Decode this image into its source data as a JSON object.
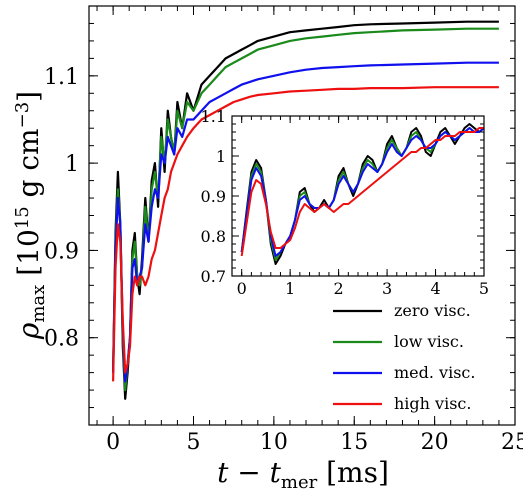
{
  "chart_data": [
    {
      "type": "line",
      "xlabel": "t − t_mer [ms]",
      "ylabel": "ρ_max [10^15 g cm^−3]",
      "xlim": [
        -1.5,
        25
      ],
      "ylim": [
        0.7,
        1.18
      ],
      "xticks": [
        0,
        5,
        10,
        15,
        20,
        25
      ],
      "yticks": [
        0.8,
        0.9,
        1.0,
        1.1
      ],
      "grid": false,
      "legend_position": "bottom-right",
      "series": [
        {
          "name": "zero visc.",
          "color": "#000000",
          "x": [
            0,
            0.15,
            0.3,
            0.45,
            0.6,
            0.75,
            0.9,
            1.05,
            1.2,
            1.35,
            1.5,
            1.65,
            1.8,
            2.0,
            2.2,
            2.4,
            2.6,
            2.8,
            3.0,
            3.2,
            3.4,
            3.6,
            3.8,
            4.0,
            4.3,
            4.6,
            5.0,
            5.5,
            6.0,
            6.5,
            7.0,
            7.5,
            8.0,
            8.5,
            9.0,
            10,
            11,
            12,
            13,
            14,
            15,
            16,
            18,
            20,
            22,
            24
          ],
          "y": [
            0.76,
            0.92,
            0.99,
            0.93,
            0.79,
            0.73,
            0.76,
            0.8,
            0.9,
            0.92,
            0.87,
            0.85,
            0.89,
            0.96,
            0.91,
            0.98,
            1.0,
            0.95,
            1.04,
            0.99,
            1.06,
            1.03,
            1.01,
            1.07,
            1.04,
            1.08,
            1.06,
            1.09,
            1.1,
            1.11,
            1.12,
            1.125,
            1.13,
            1.135,
            1.14,
            1.145,
            1.15,
            1.152,
            1.154,
            1.156,
            1.158,
            1.159,
            1.16,
            1.161,
            1.162,
            1.162
          ]
        },
        {
          "name": "low visc.",
          "color": "#1a8a1a",
          "x": [
            0,
            0.15,
            0.3,
            0.45,
            0.6,
            0.75,
            0.9,
            1.05,
            1.2,
            1.35,
            1.5,
            1.65,
            1.8,
            2.0,
            2.2,
            2.4,
            2.6,
            2.8,
            3.0,
            3.2,
            3.4,
            3.6,
            3.8,
            4.0,
            4.3,
            4.6,
            5.0,
            5.5,
            6.0,
            6.5,
            7.0,
            7.5,
            8.0,
            8.5,
            9.0,
            10,
            11,
            12,
            13,
            14,
            15,
            16,
            18,
            20,
            22,
            24
          ],
          "y": [
            0.76,
            0.91,
            0.97,
            0.93,
            0.8,
            0.74,
            0.77,
            0.8,
            0.89,
            0.91,
            0.87,
            0.86,
            0.88,
            0.95,
            0.91,
            0.97,
            0.99,
            0.96,
            1.03,
            1.0,
            1.05,
            1.03,
            1.01,
            1.06,
            1.04,
            1.07,
            1.06,
            1.08,
            1.09,
            1.1,
            1.11,
            1.115,
            1.12,
            1.125,
            1.13,
            1.135,
            1.14,
            1.143,
            1.145,
            1.147,
            1.149,
            1.15,
            1.152,
            1.153,
            1.154,
            1.154
          ]
        },
        {
          "name": "med. visc.",
          "color": "#1010ee",
          "x": [
            0,
            0.15,
            0.3,
            0.45,
            0.6,
            0.75,
            0.9,
            1.05,
            1.2,
            1.35,
            1.5,
            1.65,
            1.8,
            2.0,
            2.2,
            2.4,
            2.6,
            2.8,
            3.0,
            3.2,
            3.4,
            3.6,
            3.8,
            4.0,
            4.3,
            4.6,
            5.0,
            5.5,
            6.0,
            6.5,
            7.0,
            7.5,
            8.0,
            8.5,
            9.0,
            10,
            11,
            12,
            13,
            14,
            15,
            16,
            18,
            20,
            22,
            24
          ],
          "y": [
            0.76,
            0.9,
            0.96,
            0.93,
            0.81,
            0.75,
            0.77,
            0.8,
            0.88,
            0.89,
            0.86,
            0.87,
            0.88,
            0.93,
            0.91,
            0.95,
            0.97,
            0.96,
            1.01,
            1.0,
            1.03,
            1.02,
            1.01,
            1.04,
            1.03,
            1.05,
            1.05,
            1.06,
            1.07,
            1.075,
            1.08,
            1.085,
            1.09,
            1.093,
            1.096,
            1.1,
            1.104,
            1.107,
            1.109,
            1.11,
            1.111,
            1.112,
            1.113,
            1.114,
            1.115,
            1.115
          ]
        },
        {
          "name": "high visc.",
          "color": "#ee1010",
          "x": [
            0,
            0.15,
            0.3,
            0.45,
            0.6,
            0.75,
            0.9,
            1.05,
            1.2,
            1.35,
            1.5,
            1.65,
            1.8,
            2.0,
            2.2,
            2.4,
            2.6,
            2.8,
            3.0,
            3.2,
            3.4,
            3.6,
            3.8,
            4.0,
            4.3,
            4.6,
            5.0,
            5.5,
            6.0,
            6.5,
            7.0,
            7.5,
            8.0,
            8.5,
            9.0,
            10,
            11,
            12,
            13,
            14,
            15,
            16,
            18,
            20,
            22,
            24
          ],
          "y": [
            0.75,
            0.88,
            0.93,
            0.91,
            0.82,
            0.76,
            0.77,
            0.79,
            0.85,
            0.87,
            0.86,
            0.87,
            0.87,
            0.86,
            0.87,
            0.89,
            0.9,
            0.92,
            0.94,
            0.96,
            0.97,
            0.99,
            1.0,
            1.01,
            1.02,
            1.03,
            1.04,
            1.05,
            1.055,
            1.06,
            1.065,
            1.07,
            1.073,
            1.076,
            1.078,
            1.08,
            1.082,
            1.083,
            1.084,
            1.085,
            1.085,
            1.086,
            1.086,
            1.087,
            1.087,
            1.087
          ]
        }
      ]
    },
    {
      "type": "line",
      "inset": true,
      "xlim": [
        -0.2,
        5
      ],
      "ylim": [
        0.7,
        1.1
      ],
      "xticks": [
        0,
        1,
        2,
        3,
        4,
        5
      ],
      "yticks": [
        0.7,
        0.8,
        0.9,
        1.0,
        1.1
      ],
      "grid": false,
      "series": [
        {
          "name": "zero visc.",
          "color": "#000000",
          "x": [
            0,
            0.1,
            0.2,
            0.3,
            0.4,
            0.5,
            0.6,
            0.7,
            0.8,
            0.9,
            1.0,
            1.1,
            1.2,
            1.3,
            1.4,
            1.5,
            1.6,
            1.7,
            1.8,
            1.9,
            2.0,
            2.1,
            2.2,
            2.3,
            2.4,
            2.5,
            2.6,
            2.7,
            2.8,
            2.9,
            3.0,
            3.1,
            3.2,
            3.3,
            3.4,
            3.5,
            3.6,
            3.7,
            3.8,
            3.9,
            4.0,
            4.1,
            4.2,
            4.3,
            4.4,
            4.5,
            4.6,
            4.7,
            4.8,
            4.9,
            5.0
          ],
          "y": [
            0.76,
            0.86,
            0.96,
            0.99,
            0.97,
            0.89,
            0.78,
            0.73,
            0.75,
            0.78,
            0.8,
            0.84,
            0.91,
            0.92,
            0.88,
            0.86,
            0.87,
            0.89,
            0.87,
            0.89,
            0.95,
            0.97,
            0.93,
            0.9,
            0.93,
            0.98,
            1.0,
            0.99,
            0.96,
            0.98,
            1.03,
            1.05,
            1.02,
            1.0,
            1.02,
            1.06,
            1.07,
            1.05,
            1.01,
            1.0,
            1.03,
            1.06,
            1.07,
            1.05,
            1.03,
            1.05,
            1.07,
            1.08,
            1.07,
            1.06,
            1.07
          ]
        },
        {
          "name": "low visc.",
          "color": "#1a8a1a",
          "x": [
            0,
            0.1,
            0.2,
            0.3,
            0.4,
            0.5,
            0.6,
            0.7,
            0.8,
            0.9,
            1.0,
            1.1,
            1.2,
            1.3,
            1.4,
            1.5,
            1.6,
            1.7,
            1.8,
            1.9,
            2.0,
            2.1,
            2.2,
            2.3,
            2.4,
            2.5,
            2.6,
            2.7,
            2.8,
            2.9,
            3.0,
            3.1,
            3.2,
            3.3,
            3.4,
            3.5,
            3.6,
            3.7,
            3.8,
            3.9,
            4.0,
            4.1,
            4.2,
            4.3,
            4.4,
            4.5,
            4.6,
            4.7,
            4.8,
            4.9,
            5.0
          ],
          "y": [
            0.76,
            0.85,
            0.95,
            0.98,
            0.96,
            0.89,
            0.79,
            0.74,
            0.76,
            0.78,
            0.8,
            0.84,
            0.9,
            0.91,
            0.88,
            0.87,
            0.87,
            0.88,
            0.87,
            0.89,
            0.94,
            0.96,
            0.93,
            0.91,
            0.93,
            0.97,
            0.99,
            0.98,
            0.96,
            0.98,
            1.02,
            1.04,
            1.02,
            1.0,
            1.02,
            1.05,
            1.06,
            1.04,
            1.02,
            1.01,
            1.03,
            1.05,
            1.06,
            1.05,
            1.04,
            1.05,
            1.06,
            1.07,
            1.06,
            1.06,
            1.07
          ]
        },
        {
          "name": "med. visc.",
          "color": "#1010ee",
          "x": [
            0,
            0.1,
            0.2,
            0.3,
            0.4,
            0.5,
            0.6,
            0.7,
            0.8,
            0.9,
            1.0,
            1.1,
            1.2,
            1.3,
            1.4,
            1.5,
            1.6,
            1.7,
            1.8,
            1.9,
            2.0,
            2.1,
            2.2,
            2.3,
            2.4,
            2.5,
            2.6,
            2.7,
            2.8,
            2.9,
            3.0,
            3.1,
            3.2,
            3.3,
            3.4,
            3.5,
            3.6,
            3.7,
            3.8,
            3.9,
            4.0,
            4.1,
            4.2,
            4.3,
            4.4,
            4.5,
            4.6,
            4.7,
            4.8,
            4.9,
            5.0
          ],
          "y": [
            0.76,
            0.85,
            0.94,
            0.97,
            0.95,
            0.89,
            0.8,
            0.75,
            0.76,
            0.78,
            0.8,
            0.84,
            0.89,
            0.9,
            0.88,
            0.87,
            0.87,
            0.88,
            0.87,
            0.89,
            0.93,
            0.95,
            0.93,
            0.91,
            0.93,
            0.96,
            0.98,
            0.97,
            0.96,
            0.98,
            1.01,
            1.03,
            1.01,
            1.0,
            1.02,
            1.04,
            1.05,
            1.04,
            1.02,
            1.02,
            1.03,
            1.05,
            1.06,
            1.05,
            1.04,
            1.05,
            1.06,
            1.07,
            1.06,
            1.06,
            1.07
          ]
        },
        {
          "name": "high visc.",
          "color": "#ee1010",
          "x": [
            0,
            0.1,
            0.2,
            0.3,
            0.4,
            0.5,
            0.6,
            0.7,
            0.8,
            0.9,
            1.0,
            1.1,
            1.2,
            1.3,
            1.4,
            1.5,
            1.6,
            1.7,
            1.8,
            1.9,
            2.0,
            2.1,
            2.2,
            2.3,
            2.4,
            2.5,
            2.6,
            2.7,
            2.8,
            2.9,
            3.0,
            3.1,
            3.2,
            3.3,
            3.4,
            3.5,
            3.6,
            3.7,
            3.8,
            3.9,
            4.0,
            4.1,
            4.2,
            4.3,
            4.4,
            4.5,
            4.6,
            4.7,
            4.8,
            4.9,
            5.0
          ],
          "y": [
            0.75,
            0.83,
            0.91,
            0.94,
            0.93,
            0.88,
            0.81,
            0.77,
            0.77,
            0.78,
            0.79,
            0.82,
            0.86,
            0.88,
            0.87,
            0.86,
            0.87,
            0.88,
            0.87,
            0.86,
            0.87,
            0.88,
            0.88,
            0.89,
            0.9,
            0.91,
            0.92,
            0.93,
            0.94,
            0.95,
            0.96,
            0.97,
            0.98,
            0.99,
            1.0,
            1.01,
            1.01,
            1.02,
            1.02,
            1.03,
            1.04,
            1.04,
            1.05,
            1.05,
            1.05,
            1.06,
            1.06,
            1.06,
            1.06,
            1.07,
            1.07
          ]
        }
      ]
    }
  ]
}
